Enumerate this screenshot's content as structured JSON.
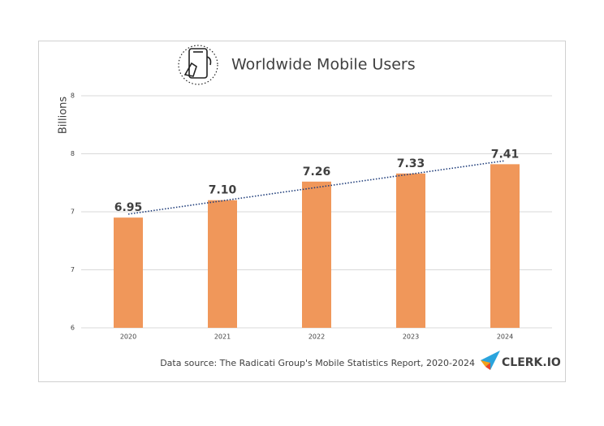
{
  "chart_data": {
    "type": "bar",
    "title": "Worldwide Mobile Users",
    "y_label": "Billions",
    "categories": [
      "2020",
      "2021",
      "2022",
      "2023",
      "2024"
    ],
    "values": [
      6.95,
      7.1,
      7.26,
      7.33,
      7.41
    ],
    "value_labels": [
      "6.95",
      "7.10",
      "7.26",
      "7.33",
      "7.41"
    ],
    "color": "#f0975a",
    "ylim": [
      6,
      8
    ],
    "yticks": [
      6,
      {
        "value": 6.5,
        "label": "7"
      },
      7,
      {
        "value": 7.5,
        "label": "8"
      },
      8
    ],
    "grid": true,
    "trendline": true,
    "trendline_color": "#1f3d7a",
    "source": "Data source: The Radicati Group's Mobile Statistics Report, 2020-2024",
    "logo": "CLERK.IO"
  }
}
